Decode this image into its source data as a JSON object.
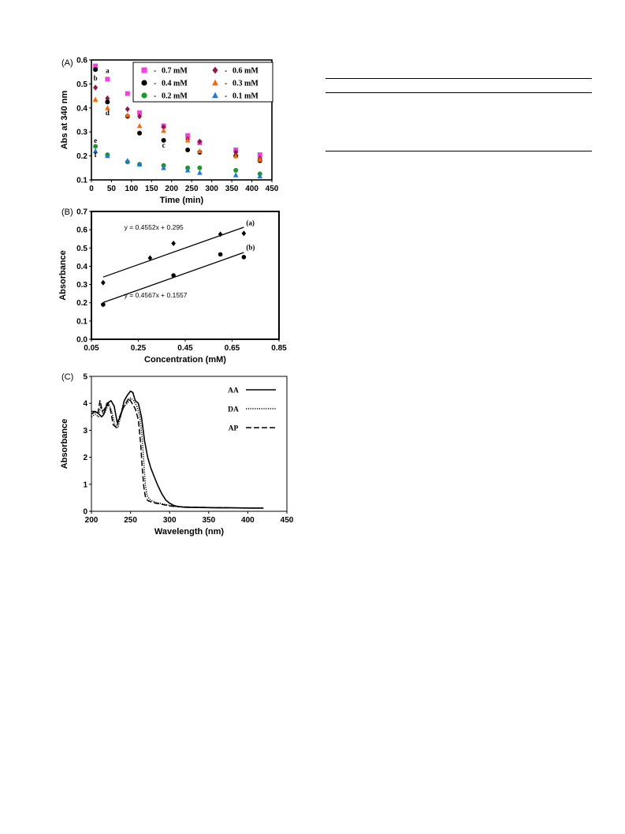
{
  "chart_data": [
    {
      "panel_label": "(A)",
      "type": "scatter",
      "xlabel": "Time (min)",
      "ylabel": "Abs at 340 nm",
      "xlim": [
        0,
        450
      ],
      "ylim": [
        0.1,
        0.6
      ],
      "xticks": [
        0,
        50,
        100,
        150,
        200,
        250,
        300,
        350,
        400,
        450
      ],
      "yticks": [
        0.1,
        0.2,
        0.3,
        0.4,
        0.5,
        0.6
      ],
      "legend_position": "top-right",
      "series": [
        {
          "name": "0.7 mM",
          "color": "#ee44dd",
          "marker": "square",
          "x": [
            10,
            40,
            90,
            120,
            180,
            240,
            270,
            360,
            420
          ],
          "y": [
            0.575,
            0.52,
            0.46,
            0.38,
            0.325,
            0.285,
            0.255,
            0.225,
            0.205
          ]
        },
        {
          "name": "0.6 mM",
          "color": "#8b1a4a",
          "marker": "diamond",
          "x": [
            10,
            40,
            90,
            120,
            180,
            240,
            270,
            360,
            420
          ],
          "y": [
            0.485,
            0.44,
            0.395,
            0.365,
            0.32,
            0.27,
            0.26,
            0.215,
            0.19
          ]
        },
        {
          "name": "0.4 mM",
          "color": "#000000",
          "marker": "circle",
          "x": [
            10,
            40,
            90,
            120,
            180,
            240,
            270,
            360,
            420
          ],
          "y": [
            0.56,
            0.425,
            0.365,
            0.295,
            0.265,
            0.225,
            0.215,
            0.2,
            0.18
          ]
        },
        {
          "name": "0.3 mM",
          "color": "#ff6600",
          "marker": "triangle",
          "x": [
            10,
            40,
            90,
            120,
            180,
            240,
            270,
            360,
            420
          ],
          "y": [
            0.435,
            0.4,
            0.37,
            0.325,
            0.305,
            0.265,
            0.22,
            0.2,
            0.185
          ]
        },
        {
          "name": "0.2 mM",
          "color": "#1a9a2a",
          "marker": "circle",
          "x": [
            10,
            40,
            90,
            120,
            180,
            240,
            270,
            360,
            420
          ],
          "y": [
            0.24,
            0.205,
            0.175,
            0.165,
            0.16,
            0.15,
            0.15,
            0.14,
            0.125
          ]
        },
        {
          "name": "0.1 mM",
          "color": "#2277dd",
          "marker": "triangle",
          "x": [
            10,
            40,
            90,
            120,
            180,
            240,
            270,
            360,
            420
          ],
          "y": [
            0.22,
            0.2,
            0.18,
            0.165,
            0.15,
            0.14,
            0.13,
            0.12,
            0.115
          ]
        }
      ],
      "annotations": [
        {
          "text": "a",
          "x": 40,
          "y": 0.545
        },
        {
          "text": "b",
          "x": 10,
          "y": 0.515
        },
        {
          "text": "d",
          "x": 40,
          "y": 0.37
        },
        {
          "text": "c",
          "x": 180,
          "y": 0.235
        },
        {
          "text": "e",
          "x": 10,
          "y": 0.255
        },
        {
          "text": "f",
          "x": 10,
          "y": 0.195
        }
      ]
    },
    {
      "panel_label": "(B)",
      "type": "scatter",
      "xlabel": "Concentration (mM)",
      "ylabel": "Absorbance",
      "xlim": [
        0.05,
        0.85
      ],
      "ylim": [
        0,
        0.7
      ],
      "xticks": [
        0.05,
        0.25,
        0.45,
        0.65,
        0.85
      ],
      "yticks": [
        0,
        0.1,
        0.2,
        0.3,
        0.4,
        0.5,
        0.6,
        0.7
      ],
      "series": [
        {
          "name": "(a)",
          "marker": "diamond",
          "color": "#000000",
          "x": [
            0.1,
            0.3,
            0.4,
            0.6,
            0.7
          ],
          "y": [
            0.31,
            0.445,
            0.525,
            0.575,
            0.58
          ],
          "fit": {
            "slope": 0.4552,
            "intercept": 0.295,
            "x_range": [
              0.1,
              0.7
            ]
          }
        },
        {
          "name": "(b)",
          "marker": "circle",
          "color": "#000000",
          "x": [
            0.1,
            0.4,
            0.6,
            0.7
          ],
          "y": [
            0.19,
            0.35,
            0.465,
            0.45
          ],
          "fit": {
            "slope": 0.4567,
            "intercept": 0.1557,
            "x_range": [
              0.1,
              0.7
            ]
          }
        }
      ],
      "equations": [
        {
          "text": "y = 0.4552x + 0.295",
          "x": 0.19,
          "y": 0.6
        },
        {
          "text": "y = 0.4567x + 0.1557",
          "x": 0.19,
          "y": 0.23
        }
      ],
      "series_labels": [
        {
          "text": "(a)",
          "x": 0.71,
          "y": 0.625
        },
        {
          "text": "(b)",
          "x": 0.71,
          "y": 0.49
        }
      ]
    },
    {
      "panel_label": "(C)",
      "type": "line",
      "xlabel": "Wavelength (nm)",
      "ylabel": "Absorbance",
      "xlim": [
        200,
        450
      ],
      "ylim": [
        0,
        5
      ],
      "xticks": [
        200,
        250,
        300,
        350,
        400,
        450
      ],
      "yticks": [
        0,
        1,
        2,
        3,
        4,
        5
      ],
      "legend_position": "top-right",
      "series": [
        {
          "name": "AA",
          "dash": "solid",
          "x": [
            200,
            205,
            210,
            213,
            216,
            220,
            225,
            229,
            233,
            237,
            242,
            246,
            250,
            253,
            256,
            260,
            264,
            268,
            272,
            276,
            280,
            285,
            290,
            295,
            300,
            305,
            310,
            320,
            340,
            360,
            380,
            400,
            420
          ],
          "y": [
            3.6,
            3.7,
            3.6,
            3.5,
            3.6,
            4.0,
            4.1,
            3.9,
            3.3,
            3.5,
            4.1,
            4.3,
            4.45,
            4.4,
            4.1,
            4.0,
            3.5,
            2.6,
            2.0,
            1.6,
            1.3,
            0.95,
            0.65,
            0.42,
            0.3,
            0.22,
            0.18,
            0.15,
            0.14,
            0.13,
            0.13,
            0.12,
            0.12
          ]
        },
        {
          "name": "DA",
          "dash": "dotted",
          "x": [
            200,
            205,
            209,
            212,
            215,
            218,
            222,
            226,
            230,
            234,
            238,
            242,
            246,
            250,
            254,
            258,
            262,
            265,
            267,
            269,
            271,
            274,
            278,
            284,
            290,
            300,
            310,
            330,
            350,
            380,
            420
          ],
          "y": [
            3.5,
            3.6,
            3.5,
            3.9,
            3.6,
            3.7,
            4.0,
            3.7,
            3.2,
            3.1,
            3.6,
            3.9,
            4.0,
            4.2,
            4.1,
            3.9,
            3.5,
            2.7,
            1.8,
            1.0,
            0.6,
            0.45,
            0.38,
            0.32,
            0.28,
            0.22,
            0.17,
            0.15,
            0.14,
            0.13,
            0.12
          ]
        },
        {
          "name": "AP",
          "dash": "dashed",
          "x": [
            200,
            205,
            208,
            211,
            214,
            217,
            220,
            224,
            228,
            232,
            236,
            240,
            244,
            248,
            252,
            256,
            260,
            263,
            265,
            267,
            269,
            272,
            276,
            282,
            290,
            300,
            310,
            330,
            350,
            380
          ],
          "y": [
            3.7,
            3.7,
            3.6,
            4.1,
            3.7,
            3.8,
            4.0,
            3.8,
            3.2,
            3.1,
            3.5,
            3.8,
            4.0,
            4.2,
            4.0,
            3.8,
            3.4,
            2.5,
            1.6,
            0.9,
            0.55,
            0.4,
            0.35,
            0.3,
            0.26,
            0.2,
            0.17,
            0.15,
            0.14,
            0.13
          ]
        }
      ]
    }
  ]
}
